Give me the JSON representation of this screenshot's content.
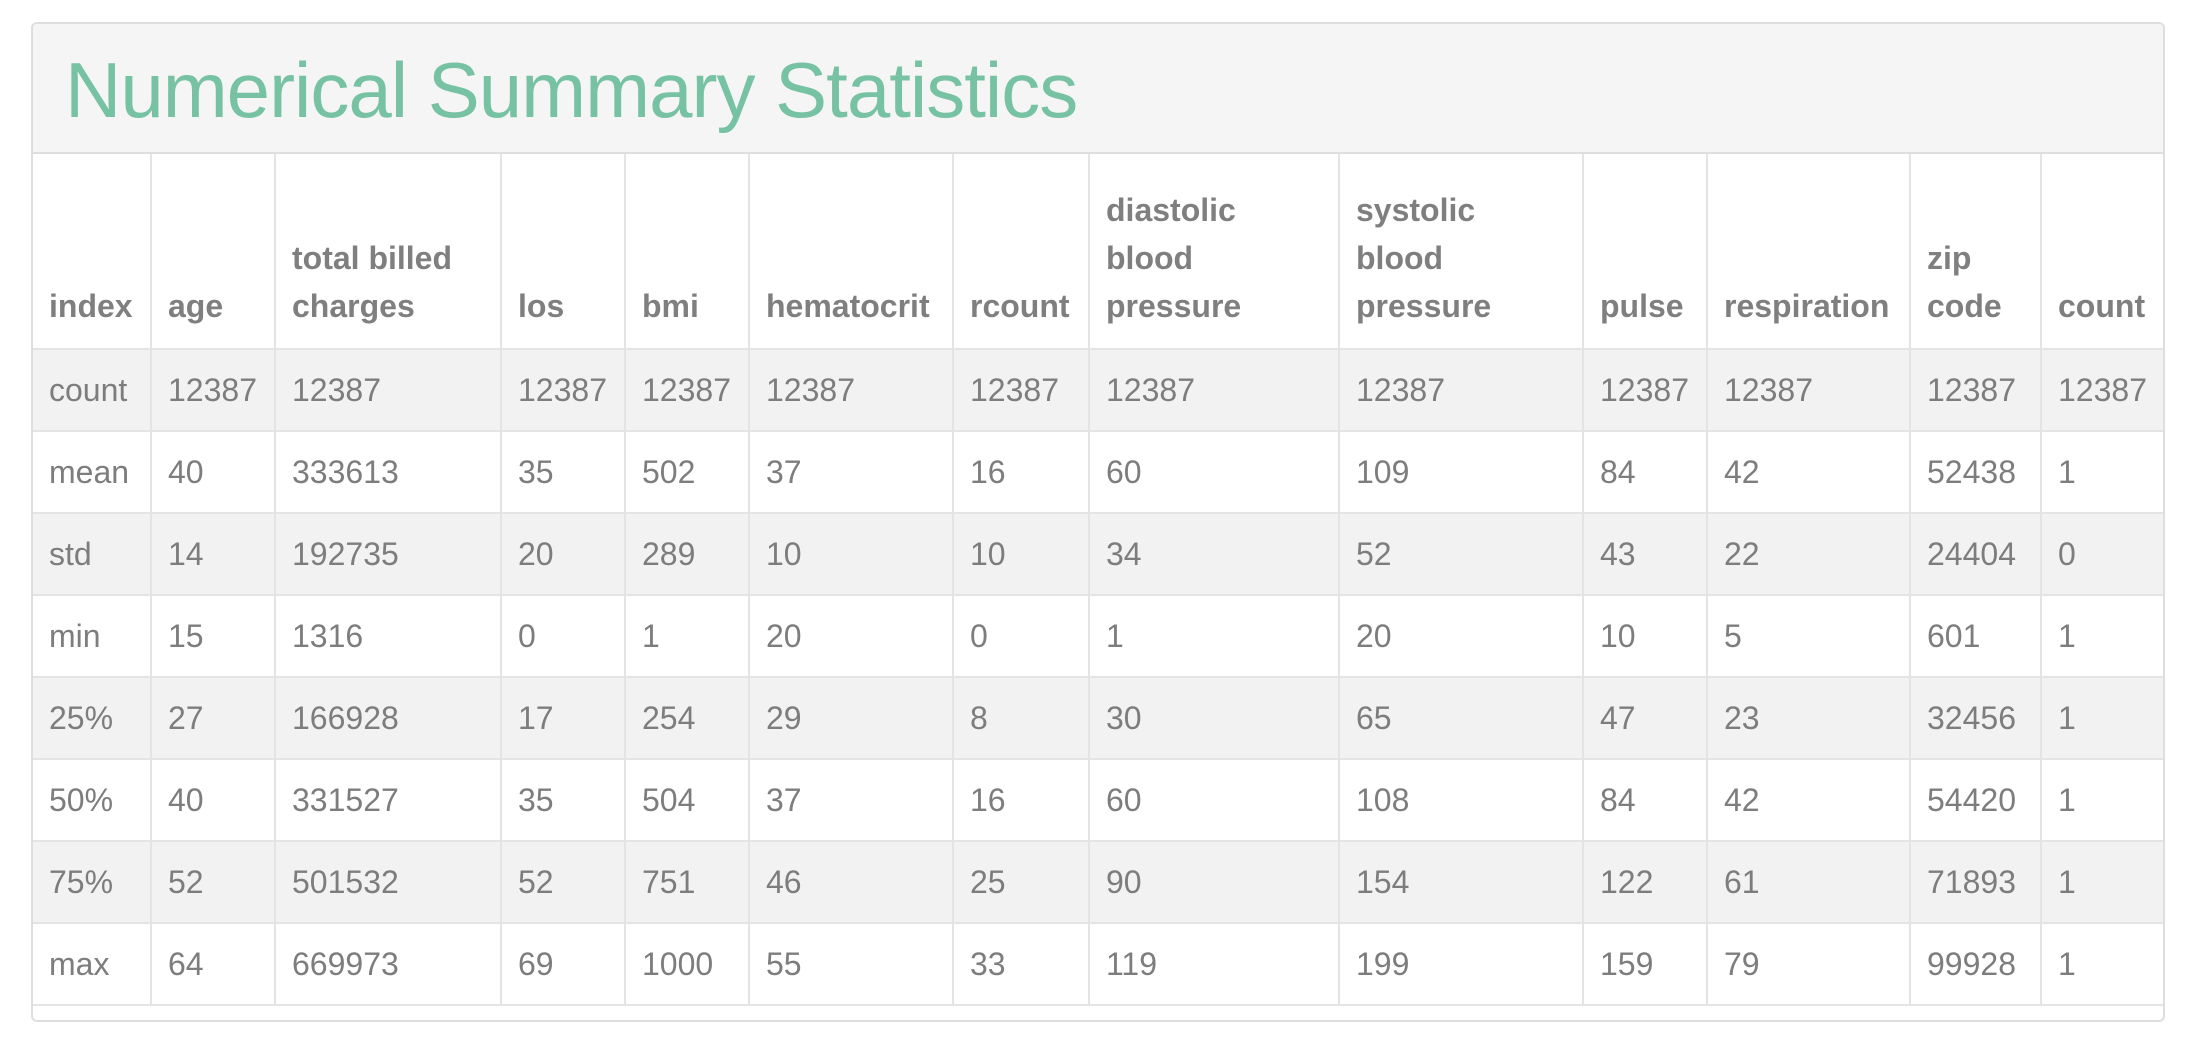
{
  "title": "Numerical Summary Statistics",
  "table": {
    "columns": [
      "index",
      "age",
      "total billed charges",
      "los",
      "bmi",
      "hematocrit",
      "rcount",
      "diastolic blood pressure",
      "systolic blood pressure",
      "pulse",
      "respiration",
      "zip code",
      "count"
    ],
    "rows": [
      [
        "count",
        "12387",
        "12387",
        "12387",
        "12387",
        "12387",
        "12387",
        "12387",
        "12387",
        "12387",
        "12387",
        "12387",
        "12387"
      ],
      [
        "mean",
        "40",
        "333613",
        "35",
        "502",
        "37",
        "16",
        "60",
        "109",
        "84",
        "42",
        "52438",
        "1"
      ],
      [
        "std",
        "14",
        "192735",
        "20",
        "289",
        "10",
        "10",
        "34",
        "52",
        "43",
        "22",
        "24404",
        "0"
      ],
      [
        "min",
        "15",
        "1316",
        "0",
        "1",
        "20",
        "0",
        "1",
        "20",
        "10",
        "5",
        "601",
        "1"
      ],
      [
        "25%",
        "27",
        "166928",
        "17",
        "254",
        "29",
        "8",
        "30",
        "65",
        "47",
        "23",
        "32456",
        "1"
      ],
      [
        "50%",
        "40",
        "331527",
        "35",
        "504",
        "37",
        "16",
        "60",
        "108",
        "84",
        "42",
        "54420",
        "1"
      ],
      [
        "75%",
        "52",
        "501532",
        "52",
        "751",
        "46",
        "25",
        "90",
        "154",
        "122",
        "61",
        "71893",
        "1"
      ],
      [
        "max",
        "64",
        "669973",
        "69",
        "1000",
        "55",
        "33",
        "119",
        "199",
        "159",
        "79",
        "99928",
        "1"
      ]
    ]
  },
  "colors": {
    "title": "#78c2a4",
    "header_background": "#f5f5f5",
    "striped_row": "#f2f2f2",
    "text": "#7d7d7d",
    "border": "#e4e4e4"
  }
}
